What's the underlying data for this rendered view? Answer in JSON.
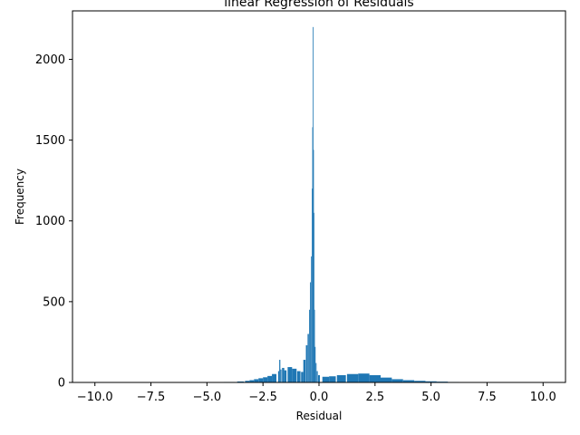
{
  "chart_data": {
    "type": "bar",
    "title": "linear Regression of Residuals",
    "xlabel": "Residual",
    "ylabel": "Frequency",
    "xlim": [
      -11.0,
      11.0
    ],
    "ylim": [
      0,
      2300
    ],
    "x_ticks": [
      -10.0,
      -7.5,
      -5.0,
      -2.5,
      0.0,
      2.5,
      5.0,
      7.5,
      10.0
    ],
    "x_tick_labels": [
      "−10.0",
      "−7.5",
      "−5.0",
      "−2.5",
      "0.0",
      "2.5",
      "5.0",
      "7.5",
      "10.0"
    ],
    "y_ticks": [
      0,
      500,
      1000,
      1500,
      2000
    ],
    "y_tick_labels": [
      "0",
      "500",
      "1000",
      "1500",
      "2000"
    ],
    "bar_color": "#1f77b4",
    "grid": false,
    "bins": [
      {
        "x": -10.0,
        "value": 1
      },
      {
        "x": -8.0,
        "value": 1
      },
      {
        "x": -6.0,
        "value": 1
      },
      {
        "x": -4.5,
        "value": 2
      },
      {
        "x": -4.0,
        "value": 3
      },
      {
        "x": -3.5,
        "value": 6
      },
      {
        "x": -3.2,
        "value": 10
      },
      {
        "x": -3.0,
        "value": 14
      },
      {
        "x": -2.8,
        "value": 20
      },
      {
        "x": -2.6,
        "value": 26
      },
      {
        "x": -2.4,
        "value": 32
      },
      {
        "x": -2.2,
        "value": 40
      },
      {
        "x": -2.0,
        "value": 52
      },
      {
        "x": -1.8,
        "value": 70
      },
      {
        "x": -1.75,
        "value": 140
      },
      {
        "x": -1.7,
        "value": 80
      },
      {
        "x": -1.6,
        "value": 90
      },
      {
        "x": -1.5,
        "value": 75
      },
      {
        "x": -1.3,
        "value": 95
      },
      {
        "x": -1.1,
        "value": 85
      },
      {
        "x": -0.9,
        "value": 70
      },
      {
        "x": -0.75,
        "value": 65
      },
      {
        "x": -0.65,
        "value": 140
      },
      {
        "x": -0.55,
        "value": 230
      },
      {
        "x": -0.48,
        "value": 300
      },
      {
        "x": -0.42,
        "value": 450
      },
      {
        "x": -0.38,
        "value": 620
      },
      {
        "x": -0.34,
        "value": 780
      },
      {
        "x": -0.31,
        "value": 1200
      },
      {
        "x": -0.29,
        "value": 1580
      },
      {
        "x": -0.27,
        "value": 2200
      },
      {
        "x": -0.25,
        "value": 1440
      },
      {
        "x": -0.23,
        "value": 1050
      },
      {
        "x": -0.2,
        "value": 450
      },
      {
        "x": -0.17,
        "value": 220
      },
      {
        "x": -0.13,
        "value": 120
      },
      {
        "x": -0.08,
        "value": 70
      },
      {
        "x": 0.0,
        "value": 45
      },
      {
        "x": 0.3,
        "value": 35
      },
      {
        "x": 0.6,
        "value": 38
      },
      {
        "x": 1.0,
        "value": 45
      },
      {
        "x": 1.5,
        "value": 52
      },
      {
        "x": 2.0,
        "value": 55
      },
      {
        "x": 2.5,
        "value": 45
      },
      {
        "x": 3.0,
        "value": 30
      },
      {
        "x": 3.5,
        "value": 20
      },
      {
        "x": 4.0,
        "value": 14
      },
      {
        "x": 4.5,
        "value": 10
      },
      {
        "x": 5.0,
        "value": 7
      },
      {
        "x": 5.5,
        "value": 5
      },
      {
        "x": 6.0,
        "value": 3
      },
      {
        "x": 7.0,
        "value": 1
      },
      {
        "x": 8.0,
        "value": 1
      },
      {
        "x": 10.0,
        "value": 1
      }
    ]
  }
}
